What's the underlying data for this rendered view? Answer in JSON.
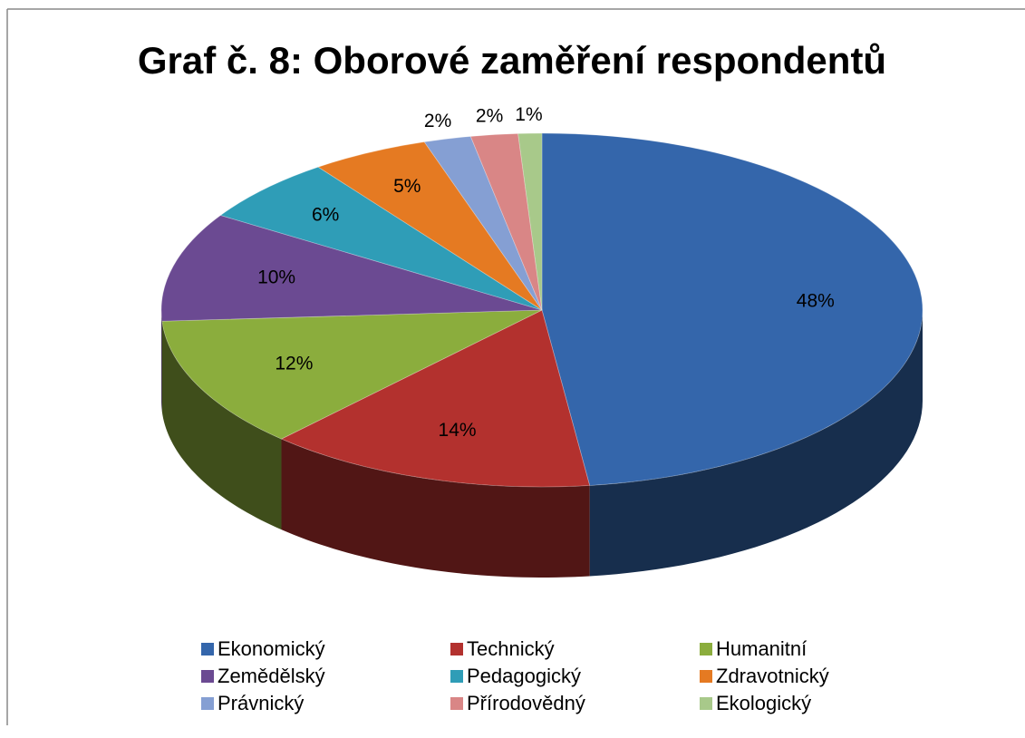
{
  "chart_data": {
    "type": "pie",
    "title": "Graf č. 8: Oborové zaměření respondentů",
    "categories": [
      "Ekonomický",
      "Technický",
      "Humanitní",
      "Zemědělský",
      "Pedagogický",
      "Zdravotnický",
      "Právnický",
      "Přírodovědný",
      "Ekologický"
    ],
    "values": [
      48,
      14,
      12,
      10,
      6,
      5,
      2,
      2,
      1
    ],
    "value_labels": [
      "48%",
      "14%",
      "12%",
      "10%",
      "6%",
      "5%",
      "2%",
      "2%",
      "1%"
    ],
    "colors": [
      "#3466ab",
      "#b3312e",
      "#8bad3d",
      "#6b4a92",
      "#2f9db7",
      "#e57a22",
      "#859fd3",
      "#d98686",
      "#a8c98a"
    ],
    "legend": "bottom"
  }
}
